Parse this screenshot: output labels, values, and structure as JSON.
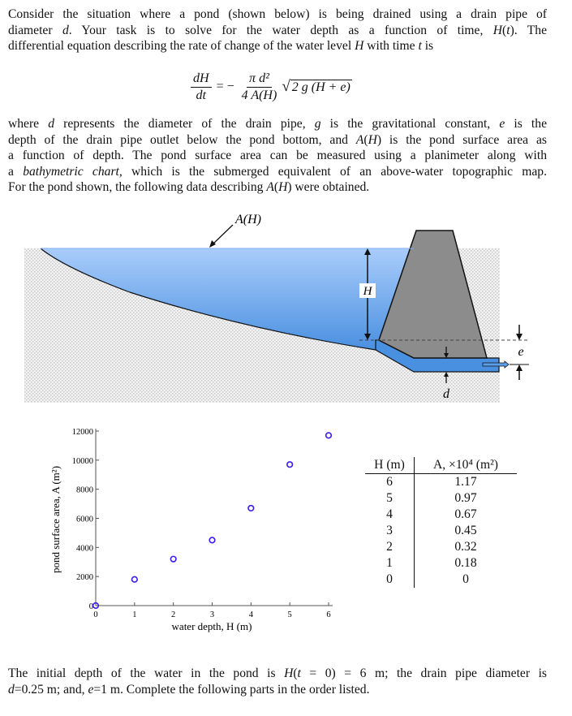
{
  "intro_lines": [
    "Consider the situation where a pond (shown below) is being drained using a drain pipe of",
    "diameter *d*.  Your task is to solve for the water depth as a function of time, *H*(*t*).  The",
    "differential equation describing the rate of change of the water level *H* with time *t* is"
  ],
  "equation": {
    "lhs_num": "dH",
    "lhs_den": "dt",
    "equals": "= −",
    "rhs_num": "π d²",
    "rhs_den": "4 A(H)",
    "sqrt_prefix": "√",
    "sqrt_body": "2 g (H + e)"
  },
  "body_lines": [
    "where *d* represents the diameter of the drain pipe, *g* is the gravitational constant, *e* is the",
    "depth of the drain pipe outlet below the pond bottom, and *A*(*H*) is the pond surface area as",
    "a function of depth.  The pond surface area can be measured using a planimeter along with",
    "a *bathymetric chart*, which is the submerged equivalent of an above-water topographic map.",
    "For the pond shown, the following data describing *A*(*H*) were obtained."
  ],
  "diagram": {
    "label_area": "A(H)",
    "label_depth": "H",
    "label_outlet": "e",
    "label_diameter": "d",
    "water_color": "#5a9ee8",
    "dam_color": "#8c8c8c"
  },
  "chart_data": {
    "type": "scatter",
    "x": [
      0,
      1,
      2,
      3,
      4,
      5,
      6
    ],
    "y": [
      0,
      1800,
      3200,
      4500,
      6700,
      9700,
      11700
    ],
    "xlabel": "water depth, H (m)",
    "ylabel": "pond surface area, A (m²)",
    "xlim": [
      0,
      6
    ],
    "ylim": [
      0,
      12000
    ],
    "xticks": [
      0,
      1,
      2,
      3,
      4,
      5,
      6
    ],
    "yticks": [
      0,
      2000,
      4000,
      6000,
      8000,
      10000,
      12000
    ],
    "marker_color": "#3a1cf0",
    "grid": false
  },
  "table": {
    "headers": [
      "H (m)",
      "A, ×10⁴ (m²)"
    ],
    "rows": [
      [
        "6",
        "1.17"
      ],
      [
        "5",
        "0.97"
      ],
      [
        "4",
        "0.67"
      ],
      [
        "3",
        "0.45"
      ],
      [
        "2",
        "0.32"
      ],
      [
        "1",
        "0.18"
      ],
      [
        "0",
        "0"
      ]
    ]
  },
  "closing_lines": [
    "The initial depth of the water in the pond is *H*(*t* = 0) = 6 m; the drain pipe diameter is",
    "*d*=0.25 m; and, *e*=1 m.  Complete the following parts in the order listed."
  ]
}
